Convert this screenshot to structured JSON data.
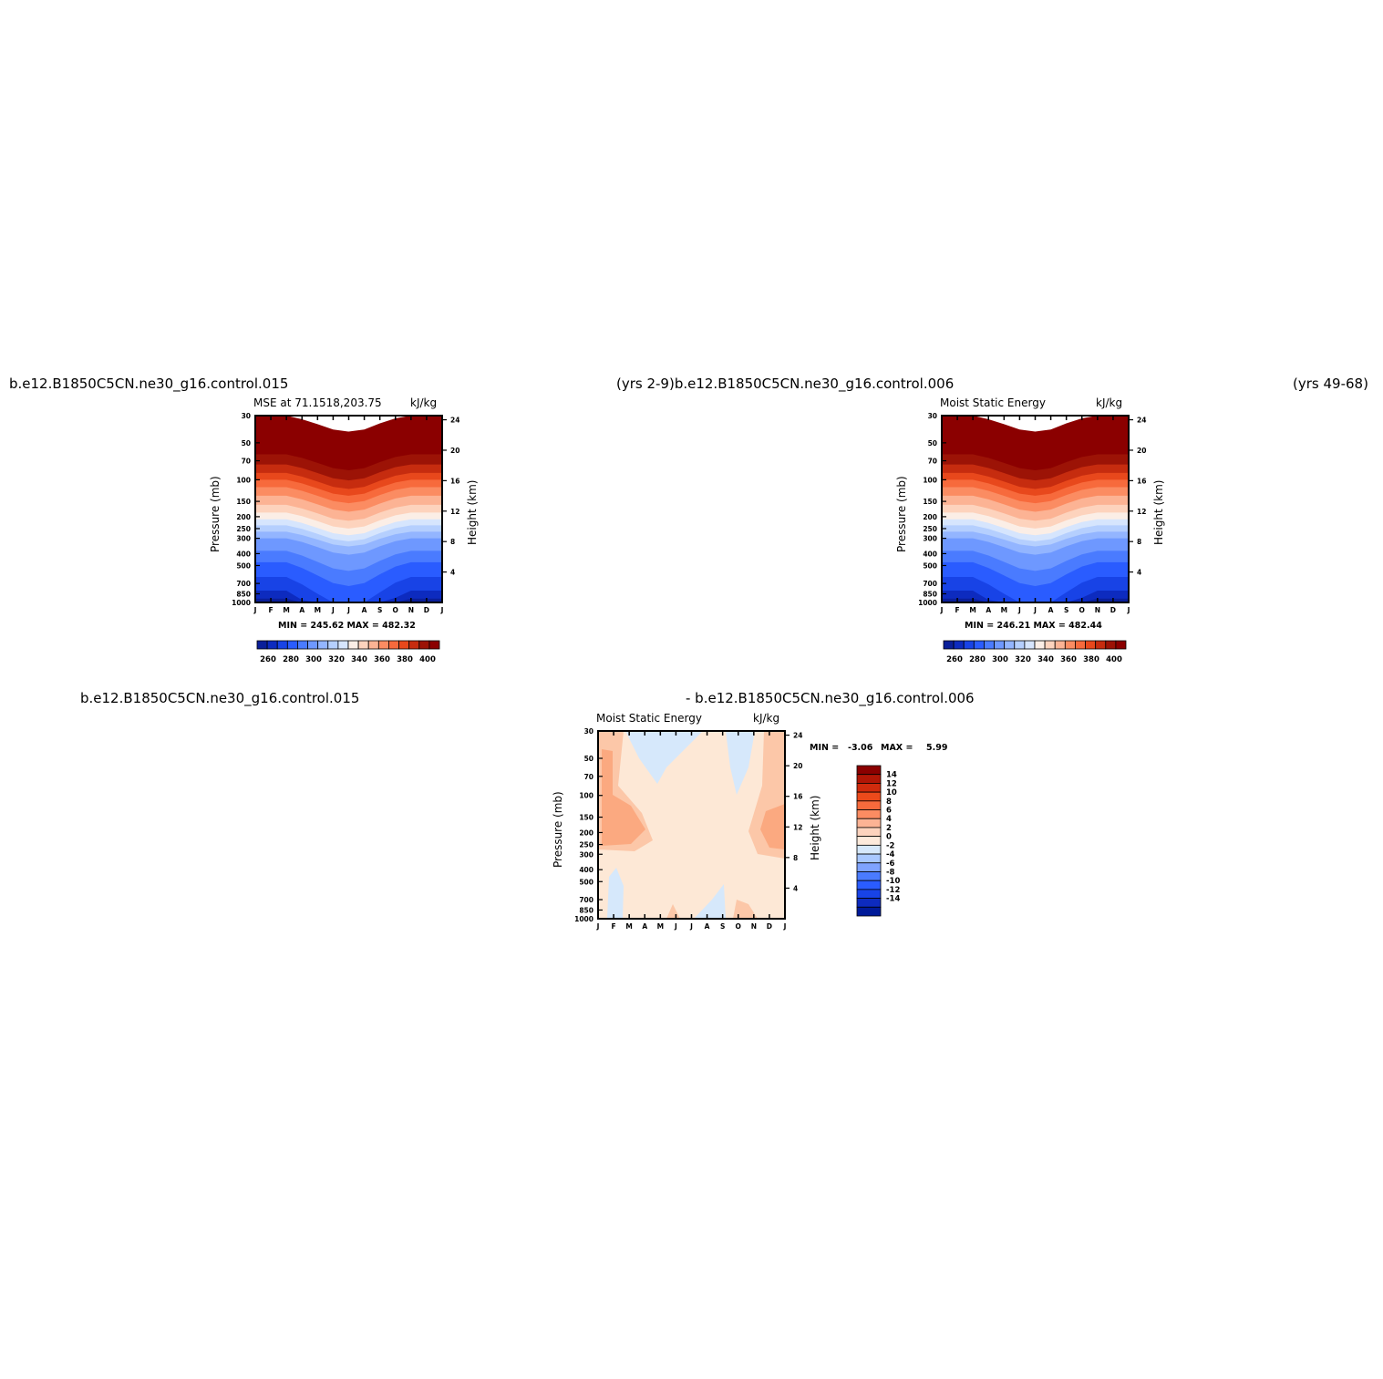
{
  "header": {
    "left_case": "b.e12.B1850C5CN.ne30_g16.control.015",
    "mid_label": "(yrs 2-9)b.e12.B1850C5CN.ne30_g16.control.006",
    "right_label": "(yrs 49-68)",
    "diff_left": "b.e12.B1850C5CN.ne30_g16.control.015",
    "diff_right": "- b.e12.B1850C5CN.ne30_g16.control.006"
  },
  "chart_data": [
    {
      "type": "heatmap",
      "title": "MSE at 71.1518,203.75",
      "units": "kJ/kg",
      "ylabel": "Pressure (mb)",
      "y2label": "Height (km)",
      "x_ticks": [
        "J",
        "F",
        "M",
        "A",
        "M",
        "J",
        "J",
        "A",
        "S",
        "O",
        "N",
        "D",
        "J"
      ],
      "y_ticks": [
        "30",
        "50",
        "70",
        "100",
        "150",
        "200",
        "250",
        "300",
        "400",
        "500",
        "700",
        "850",
        "1000"
      ],
      "y2_ticks": [
        "24",
        "20",
        "16",
        "12",
        "8",
        "4"
      ],
      "stats": "MIN = 245.62  MAX = 482.32",
      "colorbar_labels": [
        "260",
        "280",
        "300",
        "320",
        "340",
        "360",
        "380",
        "400"
      ],
      "levels_bottom_to_top": [
        250,
        260,
        270,
        280,
        290,
        300,
        310,
        320,
        330,
        340,
        350,
        360,
        370,
        380,
        390,
        400,
        410
      ],
      "month_min_depth": [
        0,
        0,
        0,
        0.2,
        0.5,
        0.85,
        1,
        0.85,
        0.45,
        0.15,
        0,
        0,
        0
      ]
    },
    {
      "type": "heatmap",
      "title": "Moist Static Energy",
      "units": "kJ/kg",
      "ylabel": "Pressure (mb)",
      "y2label": "Height (km)",
      "x_ticks": [
        "J",
        "F",
        "M",
        "A",
        "M",
        "J",
        "J",
        "A",
        "S",
        "O",
        "N",
        "D",
        "J"
      ],
      "y_ticks": [
        "30",
        "50",
        "70",
        "100",
        "150",
        "200",
        "250",
        "300",
        "400",
        "500",
        "700",
        "850",
        "1000"
      ],
      "y2_ticks": [
        "24",
        "20",
        "16",
        "12",
        "8",
        "4"
      ],
      "stats": "MIN = 246.21  MAX = 482.44",
      "colorbar_labels": [
        "260",
        "280",
        "300",
        "320",
        "340",
        "360",
        "380",
        "400"
      ],
      "levels_bottom_to_top": [
        250,
        260,
        270,
        280,
        290,
        300,
        310,
        320,
        330,
        340,
        350,
        360,
        370,
        380,
        390,
        400,
        410
      ],
      "month_min_depth": [
        0,
        0,
        0,
        0.2,
        0.5,
        0.85,
        1,
        0.85,
        0.45,
        0.15,
        0,
        0,
        0
      ]
    },
    {
      "type": "heatmap",
      "title": "Moist Static Energy",
      "units": "kJ/kg",
      "ylabel": "Pressure (mb)",
      "y2label": "Height (km)",
      "x_ticks": [
        "J",
        "F",
        "M",
        "A",
        "M",
        "J",
        "J",
        "A",
        "S",
        "O",
        "N",
        "D",
        "J"
      ],
      "y_ticks": [
        "30",
        "50",
        "70",
        "100",
        "150",
        "200",
        "250",
        "300",
        "400",
        "500",
        "700",
        "850",
        "1000"
      ],
      "y2_ticks": [
        "24",
        "20",
        "16",
        "12",
        "8",
        "4"
      ],
      "stats_min_label": "MIN =",
      "stats_min": "-3.06",
      "stats_max_label": "MAX =",
      "stats_max": "5.99",
      "colorbar_labels": [
        "14",
        "12",
        "10",
        "8",
        "6",
        "4",
        "2",
        "0",
        "-2",
        "-4",
        "-6",
        "-8",
        "-10",
        "-12",
        "-14"
      ]
    }
  ],
  "colors": {
    "mse_scale": [
      "#00007f",
      "#0a1f99",
      "#0d2bbf",
      "#1843e6",
      "#2a5cff",
      "#4a7bff",
      "#6e98ff",
      "#93b5ff",
      "#b5cffe",
      "#d6e5fd",
      "#fbeee6",
      "#fdd3bd",
      "#fcb394",
      "#fb8c62",
      "#f76a3c",
      "#e8481c",
      "#c62c0f",
      "#9c1306",
      "#8b0000"
    ],
    "diff_scale": [
      "#8b0000",
      "#b11606",
      "#d02b0d",
      "#ec4a1b",
      "#f76a3c",
      "#fb8c62",
      "#fcb394",
      "#fdd3bd",
      "#fdeadb",
      "#d6e8fb",
      "#a9c8ff",
      "#7fa3ff",
      "#4a7bff",
      "#2a5cff",
      "#1843e6",
      "#0d2bbf",
      "#001a99"
    ]
  }
}
